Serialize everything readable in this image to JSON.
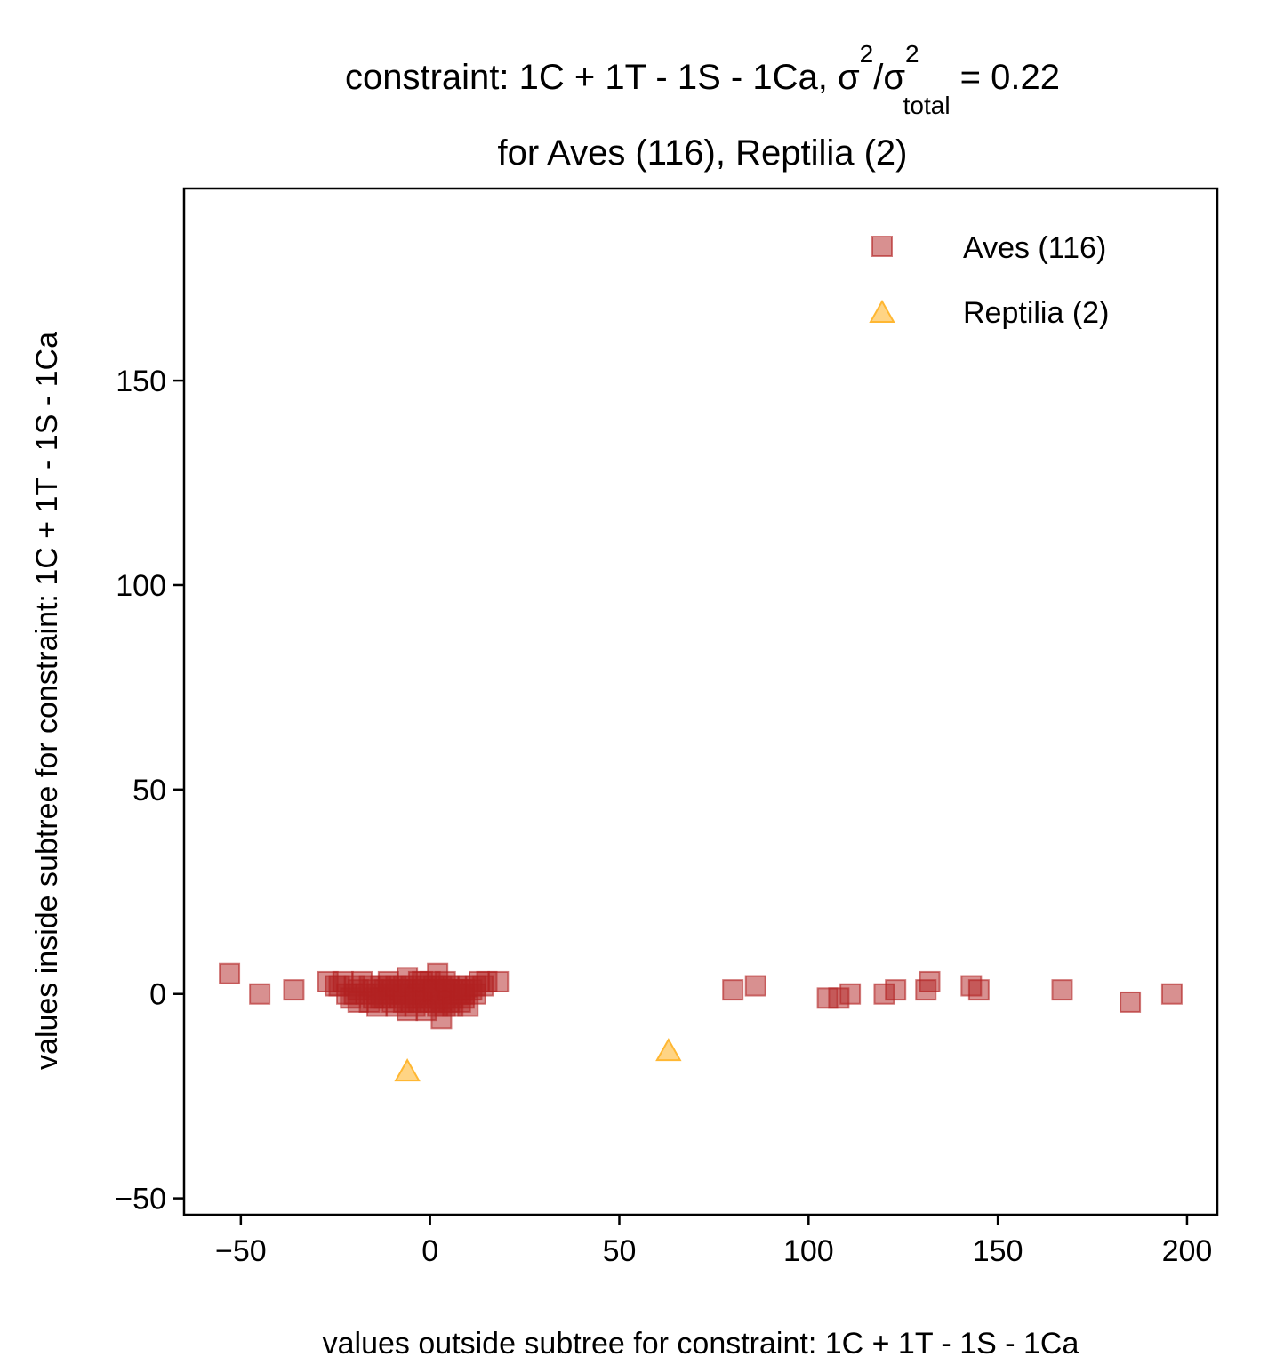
{
  "chart_data": {
    "type": "scatter",
    "title_line1": {
      "prefix": "constraint: 1C + 1T - 1S - 1Ca, σ",
      "sup1": "2",
      "mid": "/σ",
      "sup2": "2",
      "sub": "total",
      "suffix": " =  0.22"
    },
    "title_line2": "for Aves (116), Reptilia (2)",
    "xlabel": "values outside subtree for constraint: 1C + 1T - 1S - 1Ca",
    "ylabel": "values inside subtree for constraint: 1C + 1T - 1S - 1Ca",
    "xlim": [
      -65,
      208
    ],
    "ylim": [
      -54,
      197
    ],
    "xticks": [
      -50,
      0,
      50,
      100,
      150,
      200
    ],
    "xtick_labels": [
      "−50",
      "0",
      "50",
      "100",
      "150",
      "200"
    ],
    "yticks": [
      -50,
      0,
      50,
      100,
      150
    ],
    "ytick_labels": [
      "−50",
      "0",
      "50",
      "100",
      "150"
    ],
    "grid": false,
    "legend_position": "top-right",
    "series": [
      {
        "name": "Aves (116)",
        "marker": "square",
        "color": "#b22222",
        "points": [
          [
            -53,
            5
          ],
          [
            -45,
            0
          ],
          [
            -36,
            1
          ],
          [
            -27,
            3
          ],
          [
            -25,
            2
          ],
          [
            -23,
            3
          ],
          [
            -22,
            0
          ],
          [
            -21,
            -1
          ],
          [
            -20,
            2
          ],
          [
            -19,
            1
          ],
          [
            -18,
            3
          ],
          [
            -17,
            0
          ],
          [
            -16,
            2
          ],
          [
            -15,
            -1
          ],
          [
            -15,
            1
          ],
          [
            -14,
            0
          ],
          [
            -14,
            -3
          ],
          [
            -13,
            2
          ],
          [
            -12,
            1
          ],
          [
            -12,
            -1
          ],
          [
            -11,
            0
          ],
          [
            -11,
            2
          ],
          [
            -10,
            -2
          ],
          [
            -10,
            1
          ],
          [
            -9,
            0
          ],
          [
            -9,
            -3
          ],
          [
            -8,
            1
          ],
          [
            -8,
            -1
          ],
          [
            -7,
            2
          ],
          [
            -7,
            0
          ],
          [
            -6,
            -4
          ],
          [
            -6,
            4
          ],
          [
            -6,
            1
          ],
          [
            -5,
            -2
          ],
          [
            -5,
            0
          ],
          [
            -5,
            2
          ],
          [
            -4,
            -3
          ],
          [
            -4,
            1
          ],
          [
            -3,
            0
          ],
          [
            -3,
            -2
          ],
          [
            -3,
            3
          ],
          [
            -2,
            1
          ],
          [
            -2,
            -1
          ],
          [
            -2,
            0
          ],
          [
            -1,
            2
          ],
          [
            -1,
            -2
          ],
          [
            -1,
            0
          ],
          [
            0,
            1
          ],
          [
            0,
            -1
          ],
          [
            0,
            3
          ],
          [
            0,
            0
          ],
          [
            1,
            -2
          ],
          [
            1,
            2
          ],
          [
            1,
            0
          ],
          [
            2,
            5
          ],
          [
            2,
            -1
          ],
          [
            2,
            1
          ],
          [
            2,
            -3
          ],
          [
            3,
            0
          ],
          [
            3,
            -6
          ],
          [
            3,
            2
          ],
          [
            4,
            -1
          ],
          [
            4,
            1
          ],
          [
            4,
            -3
          ],
          [
            5,
            0
          ],
          [
            5,
            2
          ],
          [
            5,
            -2
          ],
          [
            6,
            1
          ],
          [
            6,
            -1
          ],
          [
            7,
            0
          ],
          [
            7,
            2
          ],
          [
            8,
            -2
          ],
          [
            8,
            1
          ],
          [
            9,
            0
          ],
          [
            9,
            -1
          ],
          [
            10,
            2
          ],
          [
            10,
            -3
          ],
          [
            11,
            1
          ],
          [
            12,
            0
          ],
          [
            13,
            3
          ],
          [
            14,
            2
          ],
          [
            15,
            3
          ],
          [
            18,
            3
          ],
          [
            -24,
            2
          ],
          [
            -20,
            0
          ],
          [
            -16,
            -2
          ],
          [
            -13,
            -1
          ],
          [
            -9,
            2
          ],
          [
            -7,
            -2
          ],
          [
            -4,
            -1
          ],
          [
            -2,
            3
          ],
          [
            1,
            1
          ],
          [
            3,
            -2
          ],
          [
            5,
            1
          ],
          [
            6,
            -3
          ],
          [
            8,
            0
          ],
          [
            80,
            1
          ],
          [
            86,
            2
          ],
          [
            105,
            -1
          ],
          [
            108,
            -1
          ],
          [
            111,
            0
          ],
          [
            120,
            0
          ],
          [
            123,
            1
          ],
          [
            131,
            1
          ],
          [
            132,
            3
          ],
          [
            143,
            2
          ],
          [
            145,
            1
          ],
          [
            167,
            1
          ],
          [
            185,
            -2
          ],
          [
            196,
            0
          ],
          [
            -19,
            -2
          ],
          [
            -11,
            3
          ],
          [
            -1,
            -4
          ],
          [
            4,
            3
          ],
          [
            9,
            1
          ],
          [
            12,
            2
          ]
        ]
      },
      {
        "name": "Reptilia (2)",
        "marker": "triangle",
        "color": "#ffb732",
        "points": [
          [
            -6,
            -19
          ],
          [
            63,
            -14
          ]
        ]
      }
    ]
  }
}
